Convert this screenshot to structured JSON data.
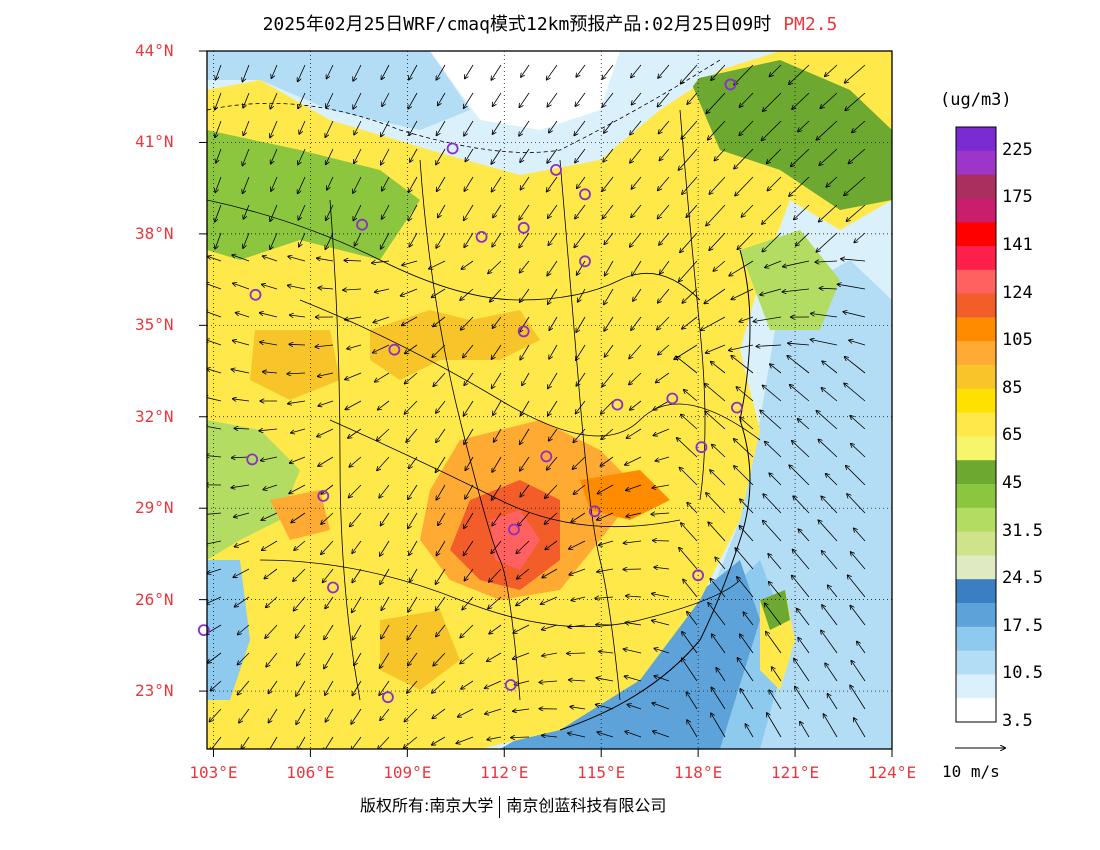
{
  "title": "2025年02月25日WRF/cmaq模式12km预报产品:02月25日09时",
  "product": "PM2.5",
  "lat_labels": [
    "44°N",
    "41°N",
    "38°N",
    "35°N",
    "32°N",
    "29°N",
    "26°N",
    "23°N"
  ],
  "lon_labels": [
    "103°E",
    "106°E",
    "109°E",
    "112°E",
    "115°E",
    "118°E",
    "121°E",
    "124°E"
  ],
  "legend": {
    "unit": "(ug/m3)",
    "labels": [
      "225",
      "175",
      "141",
      "124",
      "105",
      "85",
      "65",
      "45",
      "31.5",
      "24.5",
      "17.5",
      "10.5",
      "3.5"
    ],
    "colors": [
      "#7b2bd2",
      "#9b36c8",
      "#ab2f5e",
      "#c81e6e",
      "#ff0000",
      "#ff1f4b",
      "#ff6060",
      "#f25d2a",
      "#ff8c00",
      "#ffaa33",
      "#f7c52a",
      "#ffe100",
      "#ffe94a",
      "#f6f56b",
      "#6da831",
      "#8cc63f",
      "#b3dc62",
      "#cfe38b",
      "#dfeac2",
      "#3a7fc1",
      "#5da3d9",
      "#8ec9ee",
      "#b3ddf5",
      "#daf0fb",
      "#ffffff"
    ]
  },
  "vector_ref": "10 m/s",
  "copyright": {
    "left": "版权所有:南京大学",
    "right": "南京创蓝科技有限公司"
  },
  "colors": {
    "label_red": "#e8383d",
    "city_marker": "#8b2fc9"
  },
  "cities": [
    {
      "lon": 119.0,
      "lat": 42.9
    },
    {
      "lon": 110.4,
      "lat": 40.8
    },
    {
      "lon": 113.6,
      "lat": 40.1
    },
    {
      "lon": 114.5,
      "lat": 39.3
    },
    {
      "lon": 107.6,
      "lat": 38.3
    },
    {
      "lon": 111.3,
      "lat": 37.9
    },
    {
      "lon": 112.6,
      "lat": 38.2
    },
    {
      "lon": 114.5,
      "lat": 37.1
    },
    {
      "lon": 104.3,
      "lat": 36.0
    },
    {
      "lon": 112.6,
      "lat": 34.8
    },
    {
      "lon": 108.6,
      "lat": 34.2
    },
    {
      "lon": 115.5,
      "lat": 32.4
    },
    {
      "lon": 117.2,
      "lat": 32.6
    },
    {
      "lon": 119.2,
      "lat": 32.3
    },
    {
      "lon": 104.2,
      "lat": 30.6
    },
    {
      "lon": 113.3,
      "lat": 30.7
    },
    {
      "lon": 118.1,
      "lat": 31.0
    },
    {
      "lon": 106.4,
      "lat": 29.4
    },
    {
      "lon": 112.3,
      "lat": 28.3
    },
    {
      "lon": 114.8,
      "lat": 28.9
    },
    {
      "lon": 106.7,
      "lat": 26.4
    },
    {
      "lon": 118.0,
      "lat": 26.8
    },
    {
      "lon": 102.7,
      "lat": 25.0
    },
    {
      "lon": 108.4,
      "lat": 22.8
    },
    {
      "lon": 112.2,
      "lat": 23.2
    }
  ]
}
